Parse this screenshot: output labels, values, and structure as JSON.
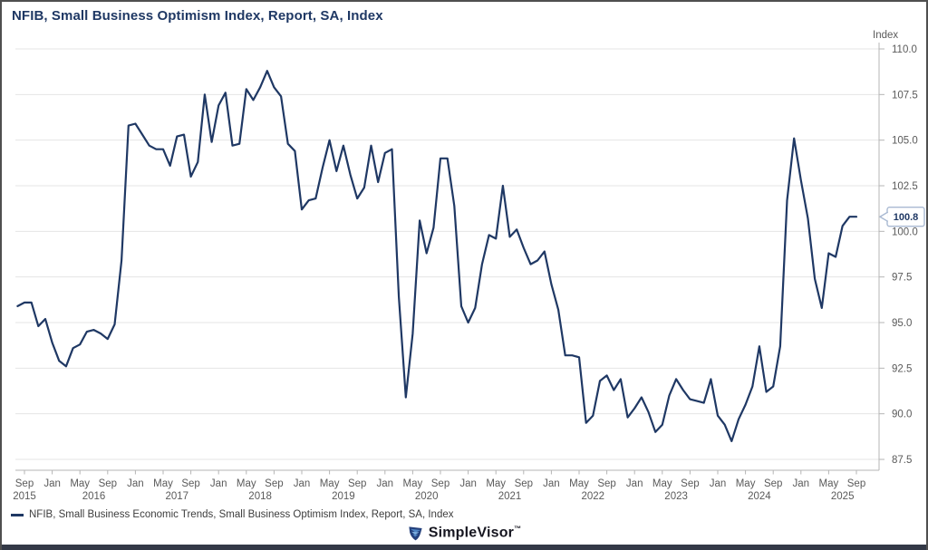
{
  "header": {
    "title": "NFIB, Small Business Optimism Index, Report, SA, Index"
  },
  "colors": {
    "line": "#1f3864",
    "grid": "#e4e4e4",
    "axis": "#b5b5b5",
    "tick_text": "#5a5a5a",
    "callout_border": "#a9b9d2",
    "callout_text": "#1f3864"
  },
  "chart_data": {
    "type": "line",
    "title": "NFIB, Small Business Optimism Index, Report, SA, Index",
    "y_axis_label": "Index",
    "ylim": [
      87.5,
      110.0
    ],
    "y_ticks": [
      110.0,
      107.5,
      105.0,
      102.5,
      100.0,
      97.5,
      95.0,
      92.5,
      90.0,
      87.5
    ],
    "x_range": [
      "2015-08",
      "2025-09"
    ],
    "x_tick_months": [
      "Sep",
      "Jan",
      "May"
    ],
    "grid": "horizontal-only",
    "legend_position": "bottom-left",
    "last_value_label": "100.8",
    "series": [
      {
        "name": "NFIB, Small Business Economic Trends, Small Business Optimism Index, Report, SA, Index",
        "points": [
          [
            "2015-08",
            95.9
          ],
          [
            "2015-09",
            96.1
          ],
          [
            "2015-10",
            96.1
          ],
          [
            "2015-11",
            94.8
          ],
          [
            "2015-12",
            95.2
          ],
          [
            "2016-01",
            93.9
          ],
          [
            "2016-02",
            92.9
          ],
          [
            "2016-03",
            92.6
          ],
          [
            "2016-04",
            93.6
          ],
          [
            "2016-05",
            93.8
          ],
          [
            "2016-06",
            94.5
          ],
          [
            "2016-07",
            94.6
          ],
          [
            "2016-08",
            94.4
          ],
          [
            "2016-09",
            94.1
          ],
          [
            "2016-10",
            94.9
          ],
          [
            "2016-11",
            98.4
          ],
          [
            "2016-12",
            105.8
          ],
          [
            "2017-01",
            105.9
          ],
          [
            "2017-02",
            105.3
          ],
          [
            "2017-03",
            104.7
          ],
          [
            "2017-04",
            104.5
          ],
          [
            "2017-05",
            104.5
          ],
          [
            "2017-06",
            103.6
          ],
          [
            "2017-07",
            105.2
          ],
          [
            "2017-08",
            105.3
          ],
          [
            "2017-09",
            103.0
          ],
          [
            "2017-10",
            103.8
          ],
          [
            "2017-11",
            107.5
          ],
          [
            "2017-12",
            104.9
          ],
          [
            "2018-01",
            106.9
          ],
          [
            "2018-02",
            107.6
          ],
          [
            "2018-03",
            104.7
          ],
          [
            "2018-04",
            104.8
          ],
          [
            "2018-05",
            107.8
          ],
          [
            "2018-06",
            107.2
          ],
          [
            "2018-07",
            107.9
          ],
          [
            "2018-08",
            108.8
          ],
          [
            "2018-09",
            107.9
          ],
          [
            "2018-10",
            107.4
          ],
          [
            "2018-11",
            104.8
          ],
          [
            "2018-12",
            104.4
          ],
          [
            "2019-01",
            101.2
          ],
          [
            "2019-02",
            101.7
          ],
          [
            "2019-03",
            101.8
          ],
          [
            "2019-04",
            103.5
          ],
          [
            "2019-05",
            105.0
          ],
          [
            "2019-06",
            103.3
          ],
          [
            "2019-07",
            104.7
          ],
          [
            "2019-08",
            103.1
          ],
          [
            "2019-09",
            101.8
          ],
          [
            "2019-10",
            102.4
          ],
          [
            "2019-11",
            104.7
          ],
          [
            "2019-12",
            102.7
          ],
          [
            "2020-01",
            104.3
          ],
          [
            "2020-02",
            104.5
          ],
          [
            "2020-03",
            96.4
          ],
          [
            "2020-04",
            90.9
          ],
          [
            "2020-05",
            94.4
          ],
          [
            "2020-06",
            100.6
          ],
          [
            "2020-07",
            98.8
          ],
          [
            "2020-08",
            100.2
          ],
          [
            "2020-09",
            104.0
          ],
          [
            "2020-10",
            104.0
          ],
          [
            "2020-11",
            101.4
          ],
          [
            "2020-12",
            95.9
          ],
          [
            "2021-01",
            95.0
          ],
          [
            "2021-02",
            95.8
          ],
          [
            "2021-03",
            98.2
          ],
          [
            "2021-04",
            99.8
          ],
          [
            "2021-05",
            99.6
          ],
          [
            "2021-06",
            102.5
          ],
          [
            "2021-07",
            99.7
          ],
          [
            "2021-08",
            100.1
          ],
          [
            "2021-09",
            99.1
          ],
          [
            "2021-10",
            98.2
          ],
          [
            "2021-11",
            98.4
          ],
          [
            "2021-12",
            98.9
          ],
          [
            "2022-01",
            97.1
          ],
          [
            "2022-02",
            95.7
          ],
          [
            "2022-03",
            93.2
          ],
          [
            "2022-04",
            93.2
          ],
          [
            "2022-05",
            93.1
          ],
          [
            "2022-06",
            89.5
          ],
          [
            "2022-07",
            89.9
          ],
          [
            "2022-08",
            91.8
          ],
          [
            "2022-09",
            92.1
          ],
          [
            "2022-10",
            91.3
          ],
          [
            "2022-11",
            91.9
          ],
          [
            "2022-12",
            89.8
          ],
          [
            "2023-01",
            90.3
          ],
          [
            "2023-02",
            90.9
          ],
          [
            "2023-03",
            90.1
          ],
          [
            "2023-04",
            89.0
          ],
          [
            "2023-05",
            89.4
          ],
          [
            "2023-06",
            91.0
          ],
          [
            "2023-07",
            91.9
          ],
          [
            "2023-08",
            91.3
          ],
          [
            "2023-09",
            90.8
          ],
          [
            "2023-10",
            90.7
          ],
          [
            "2023-11",
            90.6
          ],
          [
            "2023-12",
            91.9
          ],
          [
            "2024-01",
            89.9
          ],
          [
            "2024-02",
            89.4
          ],
          [
            "2024-03",
            88.5
          ],
          [
            "2024-04",
            89.7
          ],
          [
            "2024-05",
            90.5
          ],
          [
            "2024-06",
            91.5
          ],
          [
            "2024-07",
            93.7
          ],
          [
            "2024-08",
            91.2
          ],
          [
            "2024-09",
            91.5
          ],
          [
            "2024-10",
            93.7
          ],
          [
            "2024-11",
            101.7
          ],
          [
            "2024-12",
            105.1
          ],
          [
            "2025-01",
            102.8
          ],
          [
            "2025-02",
            100.7
          ],
          [
            "2025-03",
            97.4
          ],
          [
            "2025-04",
            95.8
          ],
          [
            "2025-05",
            98.8
          ],
          [
            "2025-06",
            98.6
          ],
          [
            "2025-07",
            100.3
          ],
          [
            "2025-08",
            100.8
          ],
          [
            "2025-09",
            100.8
          ]
        ]
      }
    ]
  },
  "legend": {
    "label": "NFIB, Small Business Economic Trends, Small Business Optimism Index, Report, SA, Index"
  },
  "branding": {
    "name": "SimpleVisor",
    "trademark": "™"
  }
}
